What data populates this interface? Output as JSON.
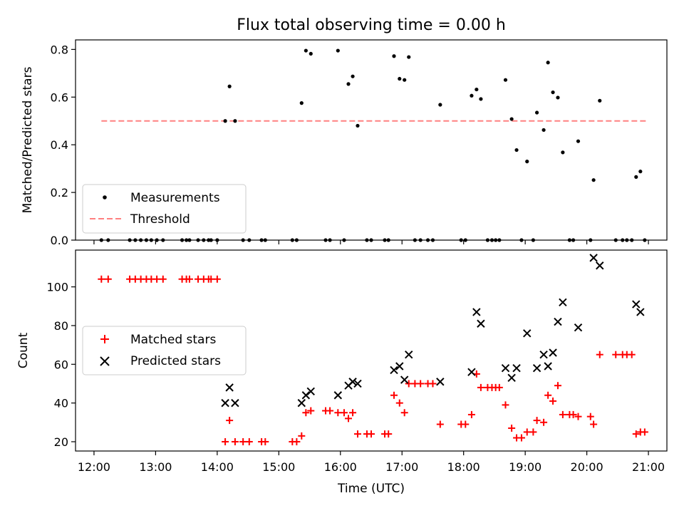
{
  "title": "Flux total observing time = 0.00 h",
  "colors": {
    "measurement": "#000000",
    "threshold": "#ff8080",
    "matched": "#ff0000",
    "predicted": "#000000"
  },
  "xaxis": {
    "label": "Time (UTC)",
    "range_hours": [
      11.7,
      21.3
    ],
    "ticks": [
      12,
      13,
      14,
      15,
      16,
      17,
      18,
      19,
      20,
      21
    ],
    "tick_labels": [
      "12:00",
      "13:00",
      "14:00",
      "15:00",
      "16:00",
      "17:00",
      "18:00",
      "19:00",
      "20:00",
      "21:00"
    ]
  },
  "top": {
    "ylabel": "Matched/Predicted stars",
    "ylim": [
      0,
      0.84
    ],
    "yticks": [
      0.0,
      0.2,
      0.4,
      0.6,
      0.8
    ],
    "ytick_labels": [
      "0.0",
      "0.2",
      "0.4",
      "0.6",
      "0.8"
    ],
    "legend": {
      "measurements": "Measurements",
      "threshold": "Threshold"
    }
  },
  "bottom": {
    "ylabel": "Count",
    "ylim": [
      15.2,
      119
    ],
    "yticks": [
      20,
      40,
      60,
      80,
      100
    ],
    "ytick_labels": [
      "20",
      "40",
      "60",
      "80",
      "100"
    ],
    "legend": {
      "matched": "Matched stars",
      "predicted": "Predicted stars"
    }
  },
  "chart_data": [
    {
      "type": "scatter",
      "title": "Flux total observing time = 0.00 h",
      "xlabel": "Time (UTC)",
      "ylabel": "Matched/Predicted stars",
      "ylim": [
        0,
        0.84
      ],
      "series": [
        {
          "name": "Measurements",
          "x": [
            12.12,
            12.23,
            12.58,
            12.67,
            12.76,
            12.85,
            12.93,
            13.02,
            13.12,
            13.43,
            13.5,
            13.55,
            13.69,
            13.78,
            13.86,
            13.9,
            14.0,
            14.13,
            14.2,
            14.29,
            14.42,
            14.52,
            14.72,
            14.78,
            15.22,
            15.29,
            15.37,
            15.44,
            15.52,
            15.76,
            15.83,
            15.96,
            16.06,
            16.13,
            16.2,
            16.28,
            16.43,
            16.5,
            16.72,
            16.78,
            16.87,
            16.96,
            17.04,
            17.11,
            17.21,
            17.3,
            17.42,
            17.5,
            17.62,
            17.96,
            18.03,
            18.13,
            18.21,
            18.28,
            18.39,
            18.46,
            18.52,
            18.58,
            18.68,
            18.78,
            18.86,
            18.94,
            19.03,
            19.13,
            19.19,
            19.3,
            19.37,
            19.45,
            19.53,
            19.61,
            19.72,
            19.78,
            19.86,
            20.06,
            20.11,
            20.21,
            20.47,
            20.58,
            20.65,
            20.73,
            20.8,
            20.87,
            20.94
          ],
          "y": [
            0,
            0,
            0,
            0,
            0,
            0,
            0,
            0,
            0,
            0,
            0,
            0,
            0,
            0,
            0,
            0,
            0,
            0.5,
            0.645,
            0.5,
            0,
            0,
            0,
            0,
            0,
            0,
            0.575,
            0.795,
            0.782,
            0,
            0,
            0.795,
            0,
            0.655,
            0.687,
            0.48,
            0,
            0,
            0,
            0,
            0.772,
            0.677,
            0.672,
            0.768,
            0,
            0,
            0,
            0,
            0.568,
            0,
            0,
            0.606,
            0.632,
            0.592,
            0,
            0,
            0,
            0,
            0.672,
            0.508,
            0.378,
            0,
            0.33,
            0,
            0.535,
            0.462,
            0.745,
            0.62,
            0.598,
            0.368,
            0,
            0,
            0.415,
            0,
            0.252,
            0.585,
            0,
            0,
            0,
            0,
            0.265,
            0.288,
            0
          ]
        },
        {
          "name": "Threshold",
          "x": [
            12.12,
            20.97
          ],
          "y": [
            0.5,
            0.5
          ]
        }
      ]
    },
    {
      "type": "scatter",
      "xlabel": "Time (UTC)",
      "ylabel": "Count",
      "ylim": [
        15.2,
        119
      ],
      "series": [
        {
          "name": "Matched stars",
          "x": [
            12.12,
            12.23,
            12.58,
            12.67,
            12.76,
            12.85,
            12.93,
            13.02,
            13.12,
            13.43,
            13.5,
            13.55,
            13.69,
            13.78,
            13.86,
            13.9,
            14.0,
            14.13,
            14.2,
            14.29,
            14.42,
            14.52,
            14.72,
            14.78,
            15.22,
            15.29,
            15.37,
            15.44,
            15.52,
            15.76,
            15.83,
            15.96,
            16.06,
            16.13,
            16.2,
            16.28,
            16.43,
            16.5,
            16.72,
            16.78,
            16.87,
            16.96,
            17.04,
            17.11,
            17.21,
            17.3,
            17.42,
            17.5,
            17.62,
            17.96,
            18.03,
            18.13,
            18.21,
            18.28,
            18.39,
            18.46,
            18.52,
            18.58,
            18.68,
            18.78,
            18.86,
            18.94,
            19.03,
            19.13,
            19.19,
            19.3,
            19.37,
            19.45,
            19.53,
            19.61,
            19.72,
            19.78,
            19.86,
            20.06,
            20.11,
            20.21,
            20.47,
            20.58,
            20.65,
            20.73,
            20.8,
            20.87,
            20.94
          ],
          "y": [
            104,
            104,
            104,
            104,
            104,
            104,
            104,
            104,
            104,
            104,
            104,
            104,
            104,
            104,
            104,
            104,
            104,
            20,
            31,
            20,
            20,
            20,
            20,
            20,
            20,
            20,
            23,
            35,
            36,
            36,
            36,
            35,
            35,
            32,
            35,
            24,
            24,
            24,
            24,
            24,
            44,
            40,
            35,
            50,
            50,
            50,
            50,
            50,
            29,
            29,
            29,
            34,
            55,
            48,
            48,
            48,
            48,
            48,
            39,
            27,
            22,
            22,
            25,
            25,
            31,
            30,
            44,
            41,
            49,
            34,
            34,
            34,
            33,
            33,
            29,
            65,
            65,
            65,
            65,
            65,
            24,
            25,
            25
          ]
        },
        {
          "name": "Predicted stars",
          "x": [
            14.13,
            14.2,
            14.29,
            15.37,
            15.44,
            15.52,
            15.96,
            16.13,
            16.2,
            16.28,
            16.87,
            16.96,
            17.04,
            17.11,
            17.62,
            18.13,
            18.21,
            18.28,
            18.68,
            18.78,
            18.86,
            19.03,
            19.19,
            19.3,
            19.37,
            19.45,
            19.53,
            19.61,
            19.86,
            20.11,
            20.21,
            20.8,
            20.87
          ],
          "y": [
            40,
            48,
            40,
            40,
            44,
            46,
            44,
            49,
            51,
            50,
            57,
            59,
            52,
            65,
            51,
            56,
            87,
            81,
            58,
            53,
            58,
            76,
            58,
            65,
            59,
            66,
            82,
            92,
            79,
            115,
            111,
            91,
            87
          ]
        }
      ]
    }
  ]
}
